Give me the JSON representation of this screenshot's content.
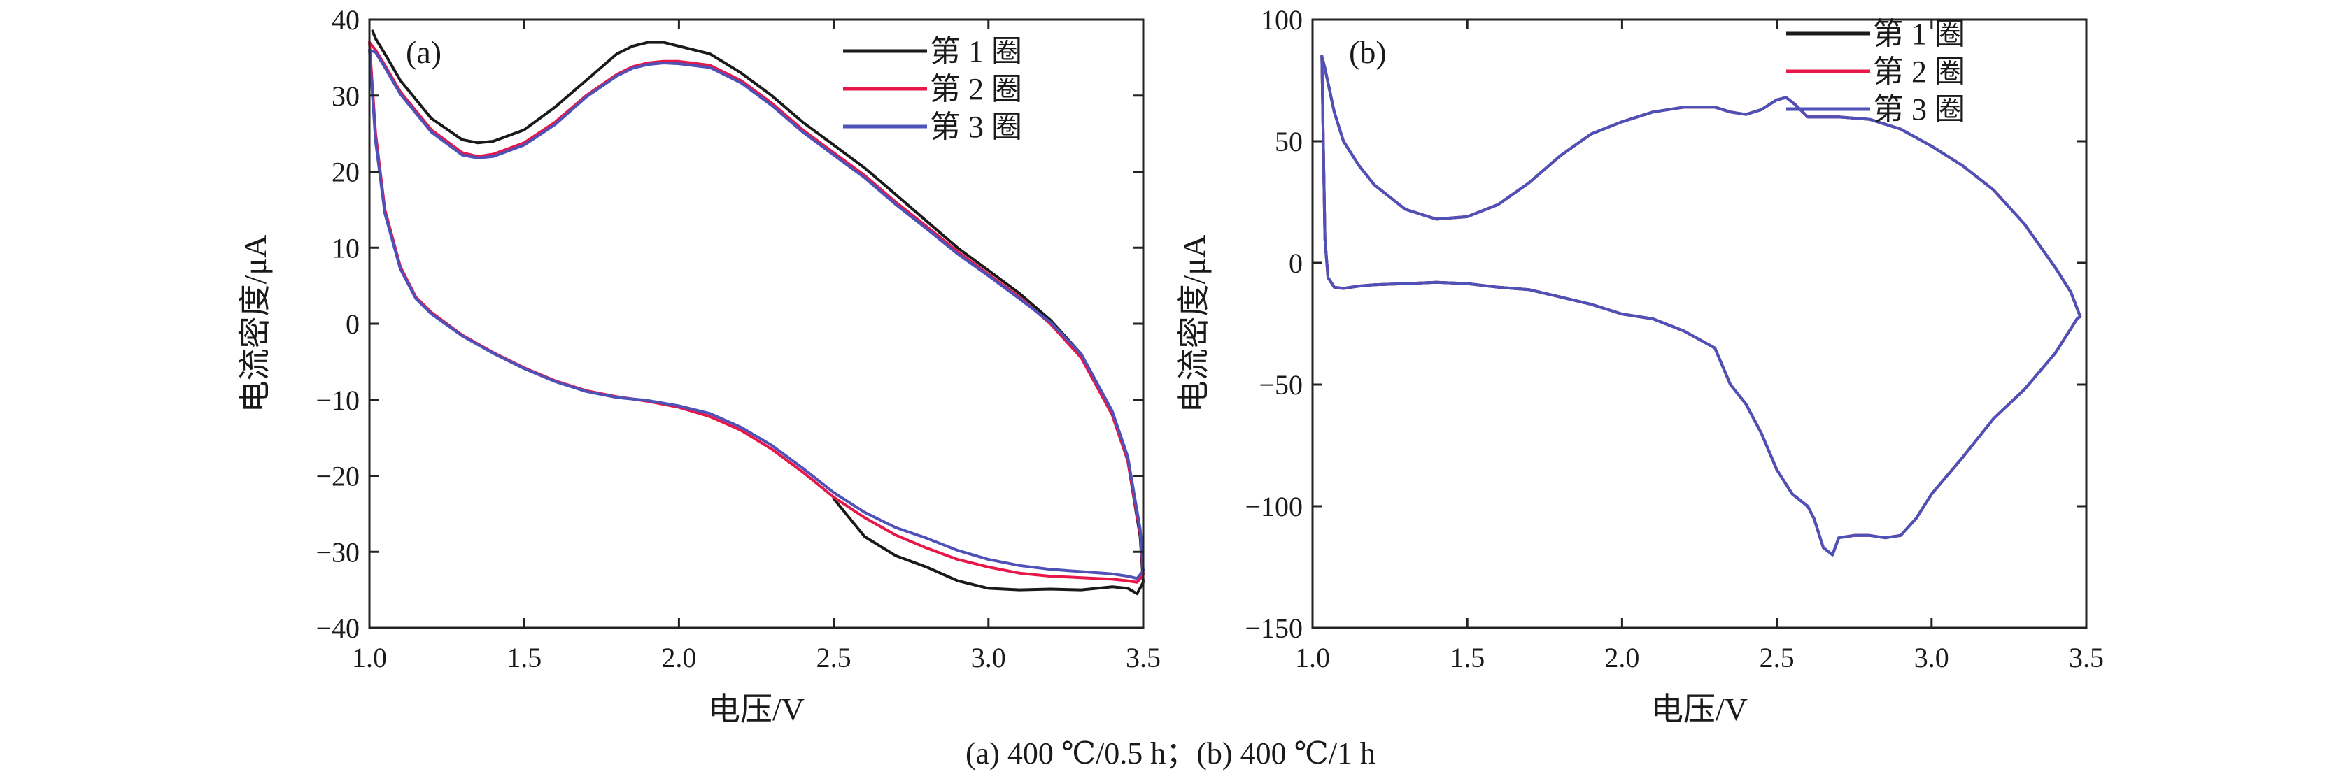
{
  "caption": "(a) 400 ℃/0.5 h；(b) 400 ℃/1 h",
  "colors": {
    "cycle1": "#1a1a1a",
    "cycle2": "#e8174a",
    "cycle3": "#4e52b8",
    "axis": "#222222"
  },
  "chart_data": [
    {
      "panel": "(a)",
      "type": "line",
      "xlabel": "电压/V",
      "ylabel": "电流密度/μA",
      "xlim": [
        1.0,
        3.5
      ],
      "ylim": [
        -40,
        40
      ],
      "xticks": [
        1.0,
        1.5,
        2.0,
        2.5,
        3.0,
        3.5
      ],
      "xtick_labels": [
        "1.0",
        "1.5",
        "2.0",
        "2.5",
        "3.0",
        "3.5"
      ],
      "yticks": [
        -40,
        -30,
        -20,
        -10,
        0,
        10,
        20,
        30,
        40
      ],
      "ytick_labels": [
        "−40",
        "−30",
        "−20",
        "−10",
        "0",
        "10",
        "20",
        "30",
        "40"
      ],
      "legend_position": "top-right",
      "series": [
        {
          "name": "第 1 圈",
          "color": "#1a1a1a",
          "x": [
            2.5,
            2.6,
            2.7,
            2.8,
            2.9,
            3.0,
            3.1,
            3.2,
            3.3,
            3.4,
            3.45,
            3.48,
            3.5,
            3.49,
            3.45,
            3.4,
            3.3,
            3.2,
            3.1,
            3.0,
            2.9,
            2.8,
            2.7,
            2.6,
            2.5,
            2.4,
            2.3,
            2.2,
            2.1,
            2.0,
            1.95,
            1.9,
            1.85,
            1.8,
            1.7,
            1.6,
            1.5,
            1.4,
            1.35,
            1.3,
            1.2,
            1.1,
            1.05,
            1.02,
            1.01
          ],
          "y": [
            -23,
            -28,
            -30.5,
            -32,
            -33.8,
            -34.8,
            -35,
            -34.9,
            -35,
            -34.6,
            -34.8,
            -35.5,
            -34,
            -28,
            -18,
            -12,
            -4,
            0.5,
            4,
            7,
            10,
            13.5,
            17,
            20.5,
            23.5,
            26.5,
            30,
            33,
            35.5,
            36.5,
            37,
            37,
            36.5,
            35.5,
            32,
            28.5,
            25.5,
            24,
            23.8,
            24.2,
            27,
            32,
            35.5,
            37.5,
            38.5
          ]
        },
        {
          "name": "第 2 圈",
          "color": "#e8174a",
          "x": [
            1.0,
            1.02,
            1.05,
            1.1,
            1.15,
            1.2,
            1.3,
            1.4,
            1.5,
            1.6,
            1.7,
            1.8,
            1.9,
            2.0,
            2.1,
            2.2,
            2.3,
            2.4,
            2.5,
            2.6,
            2.7,
            2.8,
            2.9,
            3.0,
            3.1,
            3.2,
            3.3,
            3.4,
            3.45,
            3.48,
            3.5,
            3.49,
            3.45,
            3.4,
            3.3,
            3.2,
            3.1,
            3.0,
            2.9,
            2.8,
            2.7,
            2.6,
            2.5,
            2.4,
            2.3,
            2.2,
            2.1,
            2.0,
            1.95,
            1.9,
            1.85,
            1.8,
            1.7,
            1.6,
            1.5,
            1.4,
            1.35,
            1.3,
            1.2,
            1.1,
            1.05,
            1.02,
            1.0
          ],
          "y": [
            37,
            25,
            15,
            7.5,
            3.5,
            1.5,
            -1.5,
            -3.8,
            -5.8,
            -7.5,
            -8.8,
            -9.6,
            -10.2,
            -11,
            -12.2,
            -14,
            -16.5,
            -19.5,
            -22.8,
            -25.5,
            -27.8,
            -29.5,
            -31,
            -32,
            -32.8,
            -33.2,
            -33.4,
            -33.6,
            -33.8,
            -34,
            -33,
            -27.5,
            -18,
            -12,
            -4.5,
            0,
            3.5,
            6.5,
            9.5,
            12.8,
            16,
            19.5,
            22.5,
            25.5,
            29,
            32,
            34,
            34.5,
            34.5,
            34.3,
            33.8,
            32.8,
            30,
            26.5,
            23.8,
            22.3,
            22,
            22.5,
            25.5,
            30.5,
            34,
            36,
            37
          ]
        },
        {
          "name": "第 3 圈",
          "color": "#4e52b8",
          "x": [
            1.0,
            1.02,
            1.05,
            1.1,
            1.15,
            1.2,
            1.3,
            1.4,
            1.5,
            1.6,
            1.7,
            1.8,
            1.9,
            2.0,
            2.1,
            2.2,
            2.3,
            2.4,
            2.5,
            2.6,
            2.7,
            2.8,
            2.9,
            3.0,
            3.1,
            3.2,
            3.3,
            3.4,
            3.45,
            3.48,
            3.5,
            3.49,
            3.45,
            3.4,
            3.3,
            3.2,
            3.1,
            3.0,
            2.9,
            2.8,
            2.7,
            2.6,
            2.5,
            2.4,
            2.3,
            2.2,
            2.1,
            2.0,
            1.95,
            1.9,
            1.85,
            1.8,
            1.7,
            1.6,
            1.5,
            1.4,
            1.35,
            1.3,
            1.2,
            1.1,
            1.05,
            1.02,
            1.0
          ],
          "y": [
            36,
            24,
            14.5,
            7.2,
            3.3,
            1.3,
            -1.6,
            -3.9,
            -5.9,
            -7.6,
            -8.9,
            -9.7,
            -10.1,
            -10.8,
            -11.8,
            -13.6,
            -16,
            -19,
            -22.2,
            -24.8,
            -26.8,
            -28.2,
            -29.8,
            -31,
            -31.8,
            -32.3,
            -32.6,
            -32.9,
            -33.2,
            -33.5,
            -32.5,
            -27,
            -17.5,
            -11.5,
            -4,
            0.2,
            3.3,
            6.3,
            9.2,
            12.5,
            15.7,
            19.2,
            22.2,
            25.2,
            28.7,
            31.7,
            33.7,
            34.2,
            34.3,
            34.1,
            33.6,
            32.6,
            29.8,
            26.2,
            23.5,
            22,
            21.8,
            22.2,
            25.2,
            30.2,
            33.7,
            35.7,
            36
          ]
        }
      ]
    },
    {
      "panel": "(b)",
      "type": "line",
      "xlabel": "电压/V",
      "ylabel": "电流密度/μA",
      "xlim": [
        1.0,
        3.5
      ],
      "ylim": [
        -150,
        100
      ],
      "xticks": [
        1.0,
        1.5,
        2.0,
        2.5,
        3.0,
        3.5
      ],
      "xtick_labels": [
        "1.0",
        "1.5",
        "2.0",
        "2.5",
        "3.0",
        "3.5"
      ],
      "yticks": [
        -150,
        -100,
        -50,
        0,
        50,
        100
      ],
      "ytick_labels": [
        "−150",
        "−100",
        "−50",
        "0",
        "50",
        "100"
      ],
      "legend_position": "top-right",
      "series": [
        {
          "name": "第 1 圈",
          "color": "#1a1a1a",
          "x": [
            1.03,
            1.04,
            1.07,
            1.1,
            1.15,
            1.2,
            1.3,
            1.4,
            1.5,
            1.6,
            1.7,
            1.8,
            1.9,
            2.0,
            2.1,
            2.2,
            2.3,
            2.35,
            2.4,
            2.45,
            2.5,
            2.53,
            2.56,
            2.6,
            2.7,
            2.8,
            2.9,
            3.0,
            3.1,
            3.2,
            3.3,
            3.4,
            3.45,
            3.48,
            3.47,
            3.4,
            3.3,
            3.2,
            3.1,
            3.0,
            2.95,
            2.9,
            2.85,
            2.8,
            2.75,
            2.7,
            2.68,
            2.65,
            2.62,
            2.6,
            2.55,
            2.5,
            2.45,
            2.4,
            2.35,
            2.3,
            2.2,
            2.1,
            2.0,
            1.9,
            1.8,
            1.7,
            1.6,
            1.5,
            1.4,
            1.3,
            1.2,
            1.15,
            1.1,
            1.07,
            1.05,
            1.04,
            1.03
          ],
          "y": [
            85,
            80,
            62,
            50,
            40,
            32,
            22,
            18,
            19,
            24,
            33,
            44,
            53,
            58,
            62,
            64,
            64,
            62,
            61,
            63,
            67,
            68,
            65,
            60,
            60,
            59,
            55,
            48,
            40,
            30,
            16,
            -2,
            -12,
            -22,
            -23,
            -37,
            -52,
            -64,
            -80,
            -95,
            -105,
            -112,
            -113,
            -112,
            -112,
            -113,
            -120,
            -117,
            -105,
            -100,
            -95,
            -85,
            -70,
            -58,
            -50,
            -35,
            -28,
            -23,
            -21,
            -17,
            -14,
            -11,
            -10,
            -8.5,
            -8,
            -8.5,
            -9,
            -9.5,
            -10.5,
            -10,
            -6,
            10,
            85
          ]
        },
        {
          "name": "第 2 圈",
          "color": "#e8174a",
          "x": [
            1.03,
            1.04,
            1.07,
            1.1,
            1.15,
            1.2,
            1.3,
            1.4,
            1.5,
            1.6,
            1.7,
            1.8,
            1.9,
            2.0,
            2.1,
            2.2,
            2.3,
            2.35,
            2.4,
            2.45,
            2.5,
            2.53,
            2.56,
            2.6,
            2.7,
            2.8,
            2.9,
            3.0,
            3.1,
            3.2,
            3.3,
            3.4,
            3.45,
            3.48,
            3.47,
            3.4,
            3.3,
            3.2,
            3.1,
            3.0,
            2.95,
            2.9,
            2.85,
            2.8,
            2.75,
            2.7,
            2.68,
            2.65,
            2.62,
            2.6,
            2.55,
            2.5,
            2.45,
            2.4,
            2.35,
            2.3,
            2.2,
            2.1,
            2.0,
            1.9,
            1.8,
            1.7,
            1.6,
            1.5,
            1.4,
            1.3,
            1.2,
            1.15,
            1.1,
            1.07,
            1.05,
            1.04,
            1.03
          ],
          "y": [
            85,
            80,
            62,
            50,
            40,
            32,
            22,
            18,
            19,
            24,
            33,
            44,
            53,
            58,
            62,
            64,
            64,
            62,
            61,
            63,
            67,
            68,
            65,
            60,
            60,
            59,
            55,
            48,
            40,
            30,
            16,
            -2,
            -12,
            -22,
            -23,
            -37,
            -52,
            -64,
            -80,
            -95,
            -105,
            -112,
            -113,
            -112,
            -112,
            -113,
            -120,
            -117,
            -105,
            -100,
            -95,
            -85,
            -70,
            -58,
            -50,
            -35,
            -28,
            -23,
            -21,
            -17,
            -14,
            -11,
            -10,
            -8.5,
            -8,
            -8.5,
            -9,
            -9.5,
            -10.5,
            -10,
            -6,
            10,
            85
          ]
        },
        {
          "name": "第 3 圈",
          "color": "#4e52b8",
          "x": [
            1.03,
            1.04,
            1.07,
            1.1,
            1.15,
            1.2,
            1.3,
            1.4,
            1.5,
            1.6,
            1.7,
            1.8,
            1.9,
            2.0,
            2.1,
            2.2,
            2.3,
            2.35,
            2.4,
            2.45,
            2.5,
            2.53,
            2.56,
            2.6,
            2.7,
            2.8,
            2.9,
            3.0,
            3.1,
            3.2,
            3.3,
            3.4,
            3.45,
            3.48,
            3.47,
            3.4,
            3.3,
            3.2,
            3.1,
            3.0,
            2.95,
            2.9,
            2.85,
            2.8,
            2.75,
            2.7,
            2.68,
            2.65,
            2.62,
            2.6,
            2.55,
            2.5,
            2.45,
            2.4,
            2.35,
            2.3,
            2.2,
            2.1,
            2.0,
            1.9,
            1.8,
            1.7,
            1.6,
            1.5,
            1.4,
            1.3,
            1.2,
            1.15,
            1.1,
            1.07,
            1.05,
            1.04,
            1.03
          ],
          "y": [
            85,
            80,
            62,
            50,
            40,
            32,
            22,
            18,
            19,
            24,
            33,
            44,
            53,
            58,
            62,
            64,
            64,
            62,
            61,
            63,
            67,
            68,
            65,
            60,
            60,
            59,
            55,
            48,
            40,
            30,
            16,
            -2,
            -12,
            -22,
            -23,
            -37,
            -52,
            -64,
            -80,
            -95,
            -105,
            -112,
            -113,
            -112,
            -112,
            -113,
            -120,
            -117,
            -105,
            -100,
            -95,
            -85,
            -70,
            -58,
            -50,
            -35,
            -28,
            -23,
            -21,
            -17,
            -14,
            -11,
            -10,
            -8.5,
            -8,
            -8.5,
            -9,
            -9.5,
            -10.5,
            -10,
            -6,
            10,
            85
          ]
        }
      ]
    }
  ]
}
